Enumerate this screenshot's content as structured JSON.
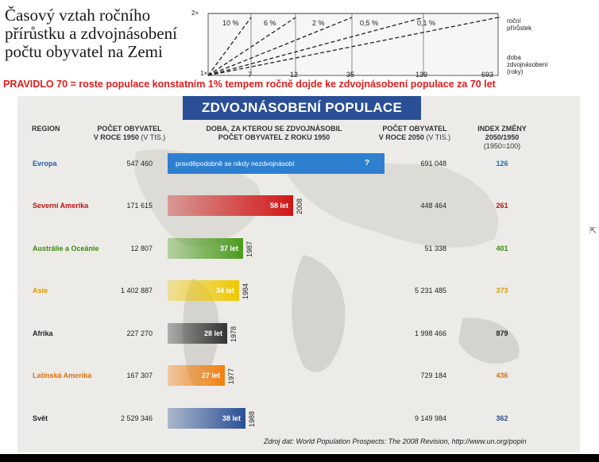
{
  "heading": {
    "line1": "Časový vztah ročního",
    "line2": "přírůstku a zdvojnásobení",
    "line3": "počtu obyvatel na Zemi"
  },
  "diagram": {
    "y_label": "2×",
    "x_origin": "1×",
    "rates": [
      "10 %",
      "6 %",
      "2 %",
      "0,5 %",
      "0,1 %"
    ],
    "years": [
      "7",
      "12",
      "35",
      "139",
      "693"
    ],
    "legend_rate_1": "roční",
    "legend_rate_2": "přírůstek",
    "legend_time_1": "doba",
    "legend_time_2": "zdvojnásobení",
    "legend_time_3": "(roky)"
  },
  "rule": "PRAVIDLO  70 = roste populace konstatním 1% tempem ročně dojde ke zdvojnásobení populace za 70 let",
  "poster": {
    "title": "ZDVOJNÁSOBENÍ POPULACE",
    "col_region": "REGION",
    "col_pop1950_1": "POČET OBYVATEL",
    "col_pop1950_2": "V ROCE 1950",
    "col_pop1950_unit": "(V TIS.)",
    "col_time_1": "DOBA, ZA KTEROU SE ZDVOJNÁSOBIL",
    "col_time_2": "POČET OBYVATEL Z ROKU 1950",
    "col_pop2050_1": "POČET OBYVATEL",
    "col_pop2050_2": "V ROCE 2050",
    "col_pop2050_unit": "(V TIS.)",
    "col_index_1": "INDEX ZMĚNY",
    "col_index_2": "2050/1950",
    "col_index_3": "(1950=100)",
    "europe_note": "pravděpodobně se nikdy nezdvojnásobí",
    "europe_q": "?",
    "source": "Zdroj dat: World Population Prospects: The 2008 Revision, http://www.un.org/popin",
    "rows": [
      {
        "region": "Evropa",
        "pop1950": "547 460",
        "bar_label": "",
        "year": "",
        "pop2050": "691 048",
        "index": "126",
        "color": "#2f7fd0",
        "idx_color": "#1f6fc0"
      },
      {
        "region": "Severní Amerika",
        "pop1950": "171 615",
        "bar_label": "58 let",
        "year": "2008",
        "pop2050": "448 464",
        "index": "261",
        "color": "#d01515",
        "idx_color": "#c01010"
      },
      {
        "region": "Austrálie a Oceánie",
        "pop1950": "12 807",
        "bar_label": "37 let",
        "year": "1987",
        "pop2050": "51 338",
        "index": "401",
        "color": "#4a9a1c",
        "idx_color": "#3a8a10"
      },
      {
        "region": "Asie",
        "pop1950": "1 402 887",
        "bar_label": "34 let",
        "year": "1984",
        "pop2050": "5 231 485",
        "index": "373",
        "color": "#f0c800",
        "idx_color": "#e09a00"
      },
      {
        "region": "Afrika",
        "pop1950": "227 270",
        "bar_label": "28 let",
        "year": "1978",
        "pop2050": "1 998 466",
        "index": "879",
        "color": "#333333",
        "idx_color": "#222222"
      },
      {
        "region": "Latinská Amerika",
        "pop1950": "167 307",
        "bar_label": "27 let",
        "year": "1977",
        "pop2050": "729 184",
        "index": "436",
        "color": "#f07f10",
        "idx_color": "#e07010"
      },
      {
        "region": "Svět",
        "pop1950": "2 529 346",
        "bar_label": "38 let",
        "year": "1988",
        "pop2050": "9 149 984",
        "index": "362",
        "color": "#2a4f96",
        "idx_color": "#2a4f96"
      }
    ]
  },
  "colors": {
    "accent_blue": "#2a4f96",
    "rule_red": "#e31b1b"
  }
}
